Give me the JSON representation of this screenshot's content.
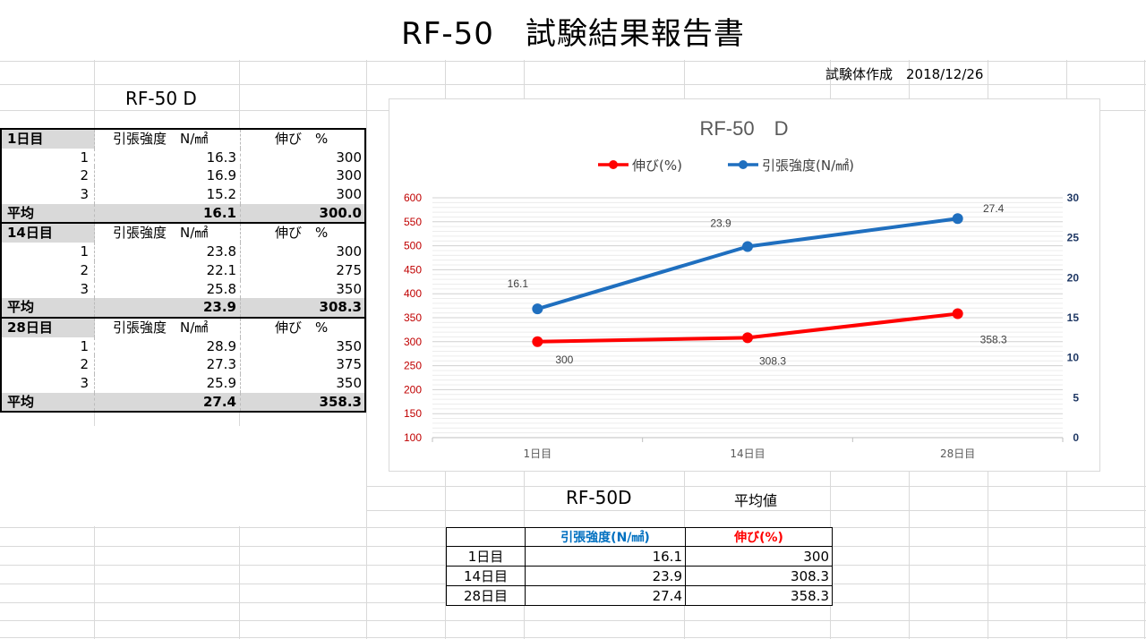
{
  "report": {
    "title": "RF-50　試験結果報告書",
    "created": "試験体作成　2018/12/26"
  },
  "left": {
    "title": "RF-50 D",
    "sections": [
      {
        "day": "1日目",
        "strength_header": "引張強度　N/㎟",
        "elong_header": "伸び　%",
        "rows": [
          {
            "no": "1",
            "strength": "16.3",
            "elong": "300"
          },
          {
            "no": "2",
            "strength": "16.9",
            "elong": "300"
          },
          {
            "no": "3",
            "strength": "15.2",
            "elong": "300"
          }
        ],
        "avg_label": "平均",
        "avg_strength": "16.1",
        "avg_elong": "300.0"
      },
      {
        "day": "14日目",
        "strength_header": "引張強度　N/㎟",
        "elong_header": "伸び　%",
        "rows": [
          {
            "no": "1",
            "strength": "23.8",
            "elong": "300"
          },
          {
            "no": "2",
            "strength": "22.1",
            "elong": "275"
          },
          {
            "no": "3",
            "strength": "25.8",
            "elong": "350"
          }
        ],
        "avg_label": "平均",
        "avg_strength": "23.9",
        "avg_elong": "308.3"
      },
      {
        "day": "28日目",
        "strength_header": "引張強度　N/㎟",
        "elong_header": "伸び　%",
        "rows": [
          {
            "no": "1",
            "strength": "28.9",
            "elong": "350"
          },
          {
            "no": "2",
            "strength": "27.3",
            "elong": "375"
          },
          {
            "no": "3",
            "strength": "25.9",
            "elong": "350"
          }
        ],
        "avg_label": "平均",
        "avg_strength": "27.4",
        "avg_elong": "358.3"
      }
    ]
  },
  "summary": {
    "title": "RF-50D",
    "avg_label": "平均値",
    "header_strength": "引張強度(N/㎟)",
    "header_elong": "伸び(%)",
    "rows": [
      {
        "day": "1日目",
        "strength": "16.1",
        "elong": "300"
      },
      {
        "day": "14日目",
        "strength": "23.9",
        "elong": "308.3"
      },
      {
        "day": "28日目",
        "strength": "27.4",
        "elong": "358.3"
      }
    ],
    "colors": {
      "strength": "#0070c0",
      "elong": "#ff0000"
    }
  },
  "chart_data": {
    "type": "line",
    "title": "RF-50　D",
    "categories": [
      "1日目",
      "14日目",
      "28日目"
    ],
    "series": [
      {
        "name": "伸び(%)",
        "axis": "left",
        "color": "#ff0000",
        "values": [
          300,
          308.3,
          358.3
        ],
        "labels": [
          "300",
          "308.3",
          "358.3"
        ]
      },
      {
        "name": "引張強度(N/㎟)",
        "axis": "right",
        "color": "#1f6fbf",
        "values": [
          16.1,
          23.9,
          27.4
        ],
        "labels": [
          "16.1",
          "23.9",
          "27.4"
        ]
      }
    ],
    "y_left": {
      "min": 100,
      "max": 600,
      "step": 50,
      "color": "#c00000"
    },
    "y_right": {
      "min": 0,
      "max": 30,
      "step": 5,
      "color": "#1f3864"
    },
    "legend": "top",
    "grid": true
  }
}
